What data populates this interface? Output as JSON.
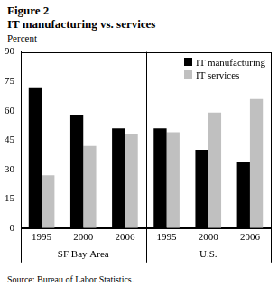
{
  "chart_data": {
    "type": "bar",
    "title": "Figure 2",
    "subtitle": "IT manufacturing vs. services",
    "y_label": "Percent",
    "source": "Source: Bureau of Labor Statistics.",
    "categories": [
      "1995",
      "2000",
      "2006",
      "1995",
      "2000",
      "2006"
    ],
    "category_groups": [
      "SF Bay Area",
      "SF Bay Area",
      "SF Bay Area",
      "U.S.",
      "U.S.",
      "U.S."
    ],
    "series": [
      {
        "name": "IT manufacturing",
        "color": "#000000",
        "values": [
          72,
          58,
          51,
          51,
          40,
          34
        ]
      },
      {
        "name": "IT services",
        "color": "#c0c0c0",
        "values": [
          27,
          42,
          48,
          49,
          59,
          66
        ]
      }
    ],
    "ylim": [
      0,
      90
    ],
    "yticks": [
      0,
      15,
      30,
      45,
      60,
      75,
      90
    ],
    "grid": false,
    "legend": "upper right"
  }
}
